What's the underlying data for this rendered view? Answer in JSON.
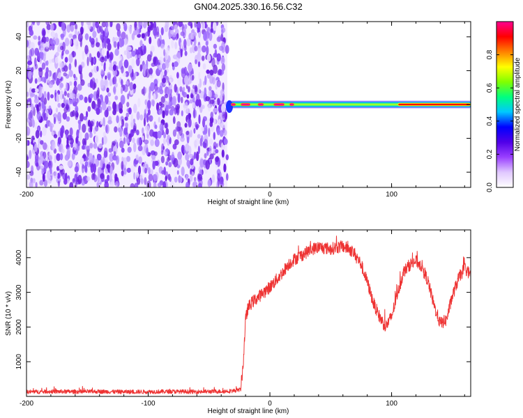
{
  "title": "GN04.2025.330.16.56.C32",
  "chart_data": [
    {
      "type": "heatmap",
      "title": "GN04.2025.330.16.56.C32",
      "xlabel": "Height of straight line (km)",
      "ylabel": "Frequency (Hz)",
      "xlim": [
        -200,
        165
      ],
      "ylim": [
        -49,
        49
      ],
      "xticks": [
        -200,
        -100,
        0,
        100
      ],
      "xtick_labels": [
        "-200",
        "-100",
        "0",
        "100"
      ],
      "yticks": [
        -40,
        -20,
        0,
        20,
        40
      ],
      "ytick_labels": [
        "-40",
        "-20",
        "0",
        "20",
        "40"
      ],
      "noise_region_x": [
        -200,
        -35
      ],
      "signal": {
        "x_start": -35,
        "x_end": 165,
        "frequency_hz": 0,
        "peak_segments": [
          {
            "x": [
              -32,
              -28
            ],
            "amp": 1.0
          },
          {
            "x": [
              -24,
              -16
            ],
            "amp": 1.0
          },
          {
            "x": [
              -10,
              -5
            ],
            "amp": 1.0
          },
          {
            "x": [
              3,
              12
            ],
            "amp": 1.0
          },
          {
            "x": [
              16,
              20
            ],
            "amp": 1.0
          },
          {
            "x": [
              105,
              165
            ],
            "amp": 0.9
          }
        ]
      },
      "colorbar": {
        "label": "Normalized spectral amplitude",
        "range": [
          0.0,
          1.0
        ],
        "ticks": [
          0.0,
          0.2,
          0.4,
          0.6,
          0.8
        ],
        "tick_labels": [
          "0.0",
          "0.2",
          "0.4",
          "0.6",
          "0.8"
        ],
        "colors": [
          "#ffffff",
          "#e0c8ff",
          "#9a40ff",
          "#5000e8",
          "#0000ff",
          "#00c8ff",
          "#00ff80",
          "#80ff00",
          "#ffff00",
          "#ff8000",
          "#ff0000",
          "#ff0090"
        ]
      }
    },
    {
      "type": "line",
      "xlabel": "Height of straight line (km)",
      "ylabel": "SNR (10 * v/v)",
      "xlim": [
        -200,
        165
      ],
      "ylim": [
        0,
        4800
      ],
      "xticks": [
        -200,
        -100,
        0,
        100
      ],
      "xtick_labels": [
        "-200",
        "-100",
        "0",
        "100"
      ],
      "yticks": [
        1000,
        2000,
        3000,
        4000
      ],
      "ytick_labels": [
        "1000",
        "2000",
        "3000",
        "4000"
      ],
      "series": [
        {
          "name": "SNR",
          "color": "#ee3333",
          "x": [
            -200,
            -180,
            -160,
            -140,
            -120,
            -100,
            -80,
            -60,
            -40,
            -30,
            -24,
            -22,
            -20,
            -18,
            -15,
            -10,
            -5,
            0,
            5,
            10,
            15,
            20,
            25,
            30,
            35,
            40,
            45,
            50,
            55,
            60,
            65,
            70,
            75,
            80,
            85,
            90,
            95,
            100,
            105,
            110,
            115,
            120,
            125,
            130,
            135,
            140,
            145,
            150,
            155,
            160,
            165
          ],
          "values": [
            130,
            140,
            135,
            140,
            130,
            135,
            140,
            135,
            145,
            160,
            200,
            900,
            2200,
            2550,
            2700,
            2850,
            3000,
            3150,
            3350,
            3550,
            3800,
            3950,
            4050,
            4150,
            4250,
            4300,
            4280,
            4250,
            4300,
            4320,
            4260,
            4100,
            3800,
            3300,
            2700,
            2300,
            2000,
            2300,
            3000,
            3600,
            3800,
            3900,
            3750,
            3300,
            2600,
            2100,
            2200,
            2900,
            3400,
            3700,
            3500
          ],
          "noise_amplitude": 180
        }
      ]
    }
  ]
}
